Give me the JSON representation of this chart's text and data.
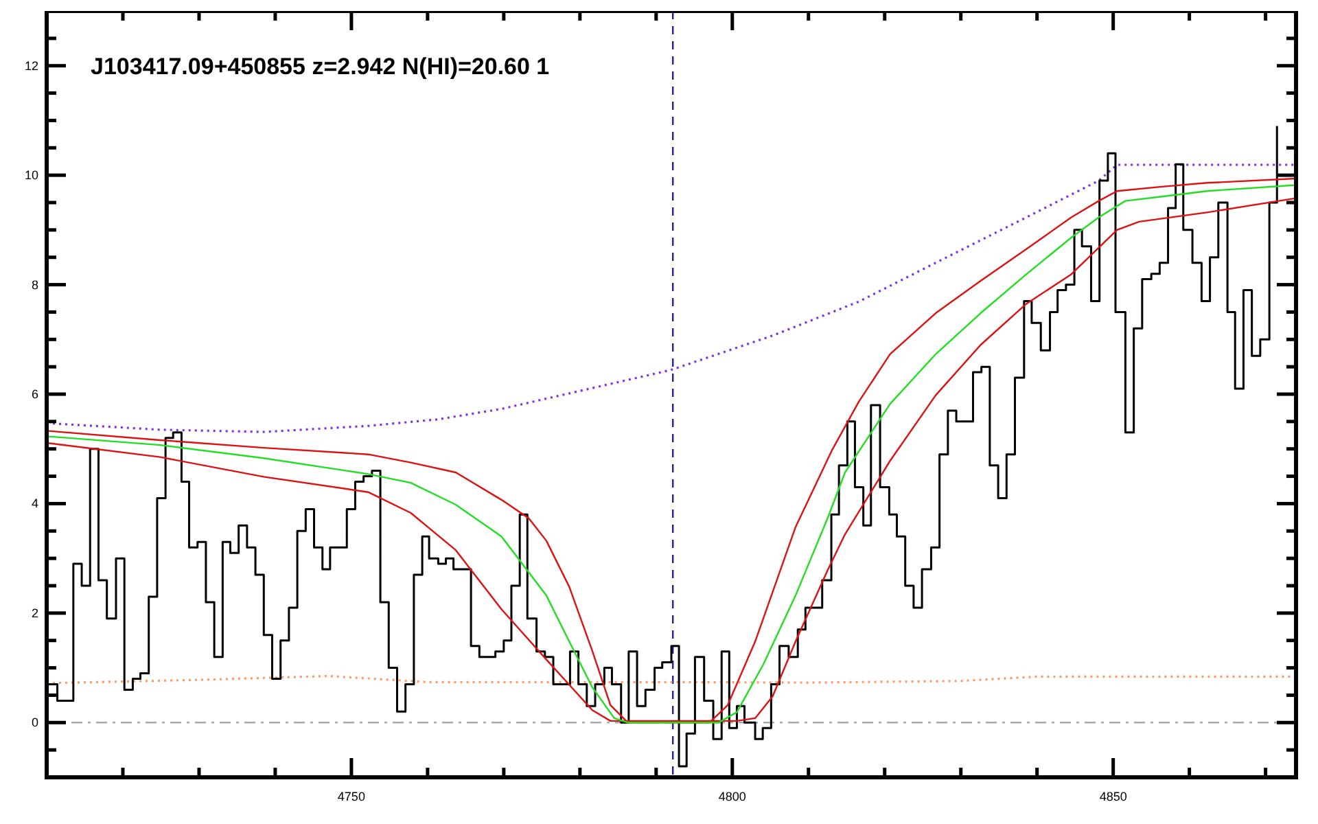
{
  "chart_data": {
    "type": "line",
    "title": "J103417.09+450855 z=2.942 N(HI)=20.60 1",
    "xlim": [
      4710,
      4874
    ],
    "ylim": [
      -1,
      13
    ],
    "xticks": [
      {
        "value": 4720,
        "label": null
      },
      {
        "value": 4730,
        "label": null
      },
      {
        "value": 4740,
        "label": null
      },
      4750,
      {
        "value": 4760,
        "label": null
      },
      {
        "value": 4770,
        "label": null
      },
      {
        "value": 4780,
        "label": null
      },
      {
        "value": 4790,
        "label": null
      },
      4800,
      {
        "value": 4810,
        "label": null
      },
      {
        "value": 4820,
        "label": null
      },
      {
        "value": 4830,
        "label": null
      },
      {
        "value": 4840,
        "label": null
      },
      4850,
      {
        "value": 4860,
        "label": null
      },
      {
        "value": 4870,
        "label": null
      }
    ],
    "yticks": [
      {
        "value": -0.5,
        "label": null
      },
      0,
      {
        "value": 0.5,
        "label": null
      },
      {
        "value": 1,
        "label": null
      },
      {
        "value": 1.5,
        "label": null
      },
      2,
      {
        "value": 2.5,
        "label": null
      },
      {
        "value": 3,
        "label": null
      },
      {
        "value": 3.5,
        "label": null
      },
      4,
      {
        "value": 4.5,
        "label": null
      },
      {
        "value": 5,
        "label": null
      },
      {
        "value": 5.5,
        "label": null
      },
      6,
      {
        "value": 6.5,
        "label": null
      },
      {
        "value": 7,
        "label": null
      },
      {
        "value": 7.5,
        "label": null
      },
      8,
      {
        "value": 8.5,
        "label": null
      },
      {
        "value": 9,
        "label": null
      },
      {
        "value": 9.5,
        "label": null
      },
      10,
      {
        "value": 10.5,
        "label": null
      },
      {
        "value": 11,
        "label": null
      },
      {
        "value": 11.5,
        "label": null
      },
      12,
      {
        "value": 12.5,
        "label": null
      }
    ],
    "grid": false,
    "ref_lines": [
      {
        "axis": "y",
        "value": 0,
        "color": "#aaaaaa",
        "line_style": "dashdot"
      },
      {
        "axis": "x",
        "value": 4792.2,
        "color": "#2020a0",
        "line_style": "dashed"
      }
    ],
    "series": [
      {
        "color": "#ff9966",
        "line_style": "dotted",
        "x": [
          4710,
          4730,
          4747,
          4760,
          4790,
          4810,
          4830,
          4840,
          4874
        ],
        "values": [
          0.72,
          0.78,
          0.85,
          0.74,
          0.74,
          0.73,
          0.76,
          0.84,
          0.84
        ]
      },
      {
        "color": "#8030e0",
        "line_style": "dotted",
        "x": [
          4710,
          4724.9,
          4738.5,
          4752.2,
          4761.4,
          4769.7,
          4781.6,
          4791.9,
          4805.3,
          4816.6,
          4826.7,
          4838.6,
          4848.1,
          4850.5,
          4874
        ],
        "values": [
          5.47,
          5.35,
          5.31,
          5.42,
          5.54,
          5.73,
          6.11,
          6.44,
          7.07,
          7.69,
          8.4,
          9.23,
          9.9,
          10.19,
          10.19
        ]
      },
      {
        "type": "step",
        "color": "#000000",
        "line_style": "solid",
        "x": [
          4710.0,
          4711.4,
          4713.5,
          4714.6,
          4715.7,
          4716.8,
          4717.9,
          4719.1,
          4720.2,
          4721.3,
          4722.3,
          4723.4,
          4724.5,
          4725.6,
          4726.6,
          4727.7,
          4728.7,
          4729.8,
          4730.9,
          4732.0,
          4733.1,
          4734.1,
          4735.2,
          4736.3,
          4737.4,
          4738.5,
          4739.6,
          4740.7,
          4741.8,
          4742.9,
          4744.0,
          4745.1,
          4746.2,
          4747.2,
          4748.3,
          4749.4,
          4750.5,
          4751.6,
          4752.7,
          4753.8,
          4754.9,
          4756.0,
          4757.1,
          4758.2,
          4759.3,
          4760.2,
          4761.4,
          4762.4,
          4763.4,
          4764.5,
          4765.7,
          4766.8,
          4767.9,
          4768.9,
          4770.0,
          4771.0,
          4772.1,
          4773.1,
          4774.3,
          4775.4,
          4776.5,
          4777.6,
          4778.7,
          4779.8,
          4780.9,
          4782.0,
          4783.2,
          4784.2,
          4785.4,
          4786.4,
          4787.5,
          4788.6,
          4789.8,
          4790.8,
          4792.0,
          4793.0,
          4794.0,
          4795.1,
          4796.3,
          4797.5,
          4798.6,
          4799.6,
          4800.6,
          4801.6,
          4803.0,
          4804.0,
          4805.1,
          4806.2,
          4807.4,
          4808.6,
          4809.6,
          4810.7,
          4811.8,
          4813.0,
          4814.0,
          4815.1,
          4816.1,
          4817.2,
          4818.2,
          4819.4,
          4820.6,
          4821.6,
          4822.7,
          4823.8,
          4824.9,
          4826.1,
          4827.2,
          4828.3,
          4829.4,
          4830.4,
          4831.6,
          4832.7,
          4833.8,
          4834.9,
          4836.0,
          4837.1,
          4838.3,
          4839.3,
          4840.5,
          4841.7,
          4842.7,
          4843.8,
          4844.9,
          4845.9,
          4847.1,
          4848.2,
          4849.3,
          4850.3,
          4851.6,
          4852.7,
          4853.8,
          4855.0,
          4856.1,
          4857.2,
          4858.2,
          4859.2,
          4860.4,
          4861.6,
          4862.7,
          4863.8,
          4865.0,
          4866.0,
          4867.1,
          4868.2,
          4869.3,
          4870.5,
          4871.5
        ],
        "values": [
          0.7,
          0.4,
          2.9,
          2.5,
          5.0,
          2.6,
          1.9,
          3.0,
          0.6,
          0.8,
          0.9,
          2.3,
          4.1,
          5.2,
          5.3,
          4.4,
          3.2,
          3.3,
          2.2,
          1.2,
          3.3,
          3.1,
          3.6,
          3.2,
          2.7,
          1.6,
          0.8,
          1.5,
          2.1,
          3.5,
          3.9,
          3.2,
          2.8,
          3.2,
          3.2,
          3.9,
          4.4,
          4.5,
          4.6,
          2.2,
          1.0,
          0.2,
          0.7,
          2.7,
          3.4,
          3.0,
          2.9,
          3.0,
          2.8,
          2.8,
          1.4,
          1.2,
          1.2,
          1.3,
          1.5,
          2.5,
          3.8,
          1.9,
          1.3,
          1.2,
          0.7,
          0.7,
          1.3,
          0.7,
          0.3,
          0.7,
          1.0,
          0.7,
          0.0,
          1.3,
          0.3,
          0.6,
          1.0,
          1.1,
          1.4,
          -0.8,
          -0.2,
          1.2,
          0.4,
          -0.3,
          1.3,
          -0.1,
          0.3,
          0.0,
          -0.3,
          -0.1,
          0.7,
          1.4,
          1.2,
          1.7,
          2.1,
          2.1,
          2.6,
          3.8,
          4.7,
          5.5,
          4.3,
          3.6,
          5.8,
          4.3,
          3.8,
          3.4,
          2.5,
          2.1,
          2.8,
          3.2,
          4.9,
          5.7,
          5.5,
          5.5,
          6.4,
          6.5,
          4.7,
          4.1,
          4.9,
          6.3,
          7.7,
          7.3,
          6.8,
          7.5,
          7.9,
          8.0,
          9.0,
          8.7,
          7.7,
          9.9,
          10.4,
          7.5,
          5.3,
          7.2,
          8.1,
          8.2,
          8.4,
          9.4,
          10.2,
          9.0,
          8.4,
          7.7,
          8.5,
          9.5,
          7.5,
          6.1,
          7.9,
          6.7,
          7.0,
          9.5,
          10.9
        ]
      },
      {
        "color": "#dd1111",
        "line_style": "solid",
        "x": [
          4710,
          4724.9,
          4738.5,
          4752.2,
          4757.8,
          4763.7,
          4769.7,
          4773.3,
          4775.6,
          4778.6,
          4781.6,
          4784.0,
          4786.3,
          4797.0,
          4799.4,
          4803.0,
          4808.3,
          4813.1,
          4816.6,
          4820.7,
          4826.7,
          4832.6,
          4838.6,
          4844.5,
          4848.1,
          4850.5,
          4856.4,
          4862.3,
          4874
        ],
        "values": [
          5.33,
          5.16,
          5.02,
          4.9,
          4.75,
          4.57,
          4.07,
          3.73,
          3.32,
          2.48,
          1.32,
          0.32,
          0,
          0,
          0.32,
          1.48,
          3.57,
          4.98,
          5.86,
          6.73,
          7.48,
          8.07,
          8.65,
          9.23,
          9.53,
          9.71,
          9.79,
          9.86,
          9.94
        ]
      },
      {
        "color": "#dd1111",
        "line_style": "solid",
        "x": [
          4710,
          4724.9,
          4738.5,
          4752.2,
          4757.8,
          4763.7,
          4769.7,
          4775.6,
          4778.6,
          4781.6,
          4784.0,
          4800.6,
          4803.0,
          4805.3,
          4808.3,
          4812.5,
          4814.8,
          4820.7,
          4826.7,
          4832.6,
          4838.6,
          4844.5,
          4850.5,
          4853.4,
          4862.3,
          4874
        ],
        "values": [
          5.11,
          4.85,
          4.49,
          4.21,
          3.83,
          3.15,
          2.07,
          1.15,
          0.69,
          0.23,
          0.03,
          0.03,
          0.08,
          0.48,
          1.48,
          2.78,
          3.44,
          4.78,
          5.98,
          6.9,
          7.65,
          8.19,
          9.0,
          9.15,
          9.32,
          9.58
        ]
      },
      {
        "color": "#22dd22",
        "line_style": "solid",
        "x": [
          4710,
          4724.9,
          4738.5,
          4752.2,
          4757.8,
          4763.7,
          4769.7,
          4775.6,
          4778.6,
          4781.6,
          4784.5,
          4786.3,
          4798.2,
          4800.6,
          4804.1,
          4808.3,
          4812.5,
          4814.8,
          4820.7,
          4826.7,
          4832.6,
          4838.6,
          4844.5,
          4848.1,
          4851.6,
          4856.4,
          4862.3,
          4874
        ],
        "values": [
          5.23,
          5.07,
          4.83,
          4.54,
          4.38,
          3.98,
          3.4,
          2.32,
          1.48,
          0.65,
          0.08,
          0,
          0,
          0.19,
          1.07,
          2.32,
          3.73,
          4.57,
          5.82,
          6.73,
          7.48,
          8.19,
          8.86,
          9.23,
          9.53,
          9.61,
          9.71,
          9.82
        ]
      }
    ]
  }
}
